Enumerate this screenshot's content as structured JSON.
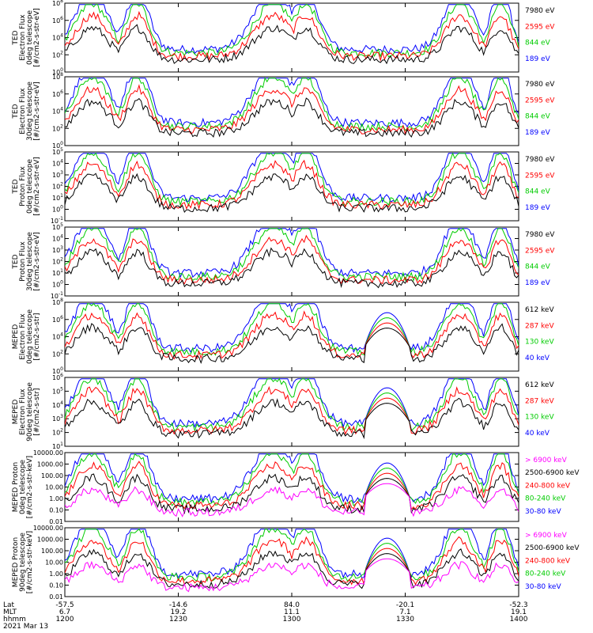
{
  "chart_data": [
    {
      "type": "line",
      "ylabel": [
        "TED",
        "Electron Flux",
        "0deg telescope",
        "[#/cm2-s-str-eV]"
      ],
      "y_ticks": [
        "10^0",
        "10^2",
        "10^4",
        "10^6",
        "10^8"
      ],
      "ylim": [
        0,
        8
      ],
      "log": true,
      "series": [
        {
          "name": "7980 eV",
          "color": "#000000"
        },
        {
          "name": "2595 eV",
          "color": "#ff0000"
        },
        {
          "name": "844 eV",
          "color": "#00cc00"
        },
        {
          "name": "189 eV",
          "color": "#0000ff"
        }
      ]
    },
    {
      "type": "line",
      "ylabel": [
        "TED",
        "Electron Flux",
        "30deg telescope",
        "[#/cm2-s-str-eV]"
      ],
      "y_ticks": [
        "10^0",
        "10^2",
        "10^4",
        "10^6",
        "10^8"
      ],
      "ylim": [
        0,
        8
      ],
      "log": true,
      "series": [
        {
          "name": "7980 eV",
          "color": "#000000"
        },
        {
          "name": "2595 eV",
          "color": "#ff0000"
        },
        {
          "name": "844 eV",
          "color": "#00cc00"
        },
        {
          "name": "189 eV",
          "color": "#0000ff"
        }
      ]
    },
    {
      "type": "line",
      "ylabel": [
        "TED",
        "Proton Flux",
        "0deg telescope",
        "[#/cm2-s-str-eV]"
      ],
      "y_ticks": [
        "10^-1",
        "10^0",
        "10^1",
        "10^2",
        "10^3",
        "10^4",
        "10^5"
      ],
      "ylim": [
        -1,
        5
      ],
      "log": true,
      "series": [
        {
          "name": "7980 eV",
          "color": "#000000"
        },
        {
          "name": "2595 eV",
          "color": "#ff0000"
        },
        {
          "name": "844 eV",
          "color": "#00cc00"
        },
        {
          "name": "189 eV",
          "color": "#0000ff"
        }
      ]
    },
    {
      "type": "line",
      "ylabel": [
        "TED",
        "Proton Flux",
        "30deg telescope",
        "[#/cm2-s-str-eV]"
      ],
      "y_ticks": [
        "10^-1",
        "10^0",
        "10^1",
        "10^2",
        "10^3",
        "10^4",
        "10^5"
      ],
      "ylim": [
        -1,
        5
      ],
      "log": true,
      "series": [
        {
          "name": "7980 eV",
          "color": "#000000"
        },
        {
          "name": "2595 eV",
          "color": "#ff0000"
        },
        {
          "name": "844 eV",
          "color": "#00cc00"
        },
        {
          "name": "189 eV",
          "color": "#0000ff"
        }
      ]
    },
    {
      "type": "line",
      "ylabel": [
        "MEPED",
        "Electron Flux",
        "0deg telescope",
        "[#/cm2-s-str]"
      ],
      "y_ticks": [
        "10^0",
        "10^2",
        "10^4",
        "10^6",
        "10^8"
      ],
      "ylim": [
        0,
        8
      ],
      "log": true,
      "series": [
        {
          "name": "612 keV",
          "color": "#000000"
        },
        {
          "name": "287 keV",
          "color": "#ff0000"
        },
        {
          "name": "130 keV",
          "color": "#00cc00"
        },
        {
          "name": "40 keV",
          "color": "#0000ff"
        }
      ]
    },
    {
      "type": "line",
      "ylabel": [
        "MEPED",
        "Electron Flux",
        "90deg telescope",
        "[#/cm2-s-str]"
      ],
      "y_ticks": [
        "10^1",
        "10^2",
        "10^3",
        "10^4",
        "10^5",
        "10^6"
      ],
      "ylim": [
        1,
        6
      ],
      "log": true,
      "series": [
        {
          "name": "612 keV",
          "color": "#000000"
        },
        {
          "name": "287 keV",
          "color": "#ff0000"
        },
        {
          "name": "130 keV",
          "color": "#00cc00"
        },
        {
          "name": "40 keV",
          "color": "#0000ff"
        }
      ]
    },
    {
      "type": "line",
      "ylabel": [
        "MEPED Proton",
        "0deg telescope",
        "[#/cm2-s-str-keV]"
      ],
      "y_ticks": [
        "0.01",
        "0.10",
        "1.00",
        "10.00",
        "100.00",
        "1000.00",
        "10000.00"
      ],
      "ylim": [
        -2,
        4
      ],
      "log": true,
      "series": [
        {
          "name": "> 6900 keV",
          "color": "#ff00ff"
        },
        {
          "name": "2500-6900 keV",
          "color": "#000000"
        },
        {
          "name": "240-800 keV",
          "color": "#ff0000"
        },
        {
          "name": "80-240 keV",
          "color": "#00cc00"
        },
        {
          "name": "30-80 keV",
          "color": "#0000ff"
        }
      ]
    },
    {
      "type": "line",
      "ylabel": [
        "MEPED Proton",
        "90deg telescope",
        "[#/cm2-s-str-keV]"
      ],
      "y_ticks": [
        "0.01",
        "0.10",
        "1.00",
        "10.00",
        "100.00",
        "1000.00",
        "10000.00"
      ],
      "ylim": [
        -2,
        4
      ],
      "log": true,
      "series": [
        {
          "name": "> 6900 keV",
          "color": "#ff00ff"
        },
        {
          "name": "2500-6900 keV",
          "color": "#000000"
        },
        {
          "name": "240-800 keV",
          "color": "#ff0000"
        },
        {
          "name": "80-240 keV",
          "color": "#00cc00"
        },
        {
          "name": "30-80 keV",
          "color": "#0000ff"
        }
      ]
    }
  ],
  "x_axis": {
    "row_labels": [
      "Lat",
      "MLT",
      "hhmm",
      "2021 Mar 13"
    ],
    "ticks": [
      {
        "lat": "-57.5",
        "mlt": "6.7",
        "hhmm": "1200"
      },
      {
        "lat": "-14.6",
        "mlt": "19.2",
        "hhmm": "1230"
      },
      {
        "lat": "84.0",
        "mlt": "11.1",
        "hhmm": "1300"
      },
      {
        "lat": "-20.1",
        "mlt": "7.1",
        "hhmm": "1330"
      },
      {
        "lat": "-52.3",
        "mlt": "19.1",
        "hhmm": "1400"
      }
    ]
  },
  "colors": {
    "black": "#000000",
    "red": "#ff0000",
    "green": "#00cc00",
    "blue": "#0000ff",
    "magenta": "#ff00ff"
  }
}
